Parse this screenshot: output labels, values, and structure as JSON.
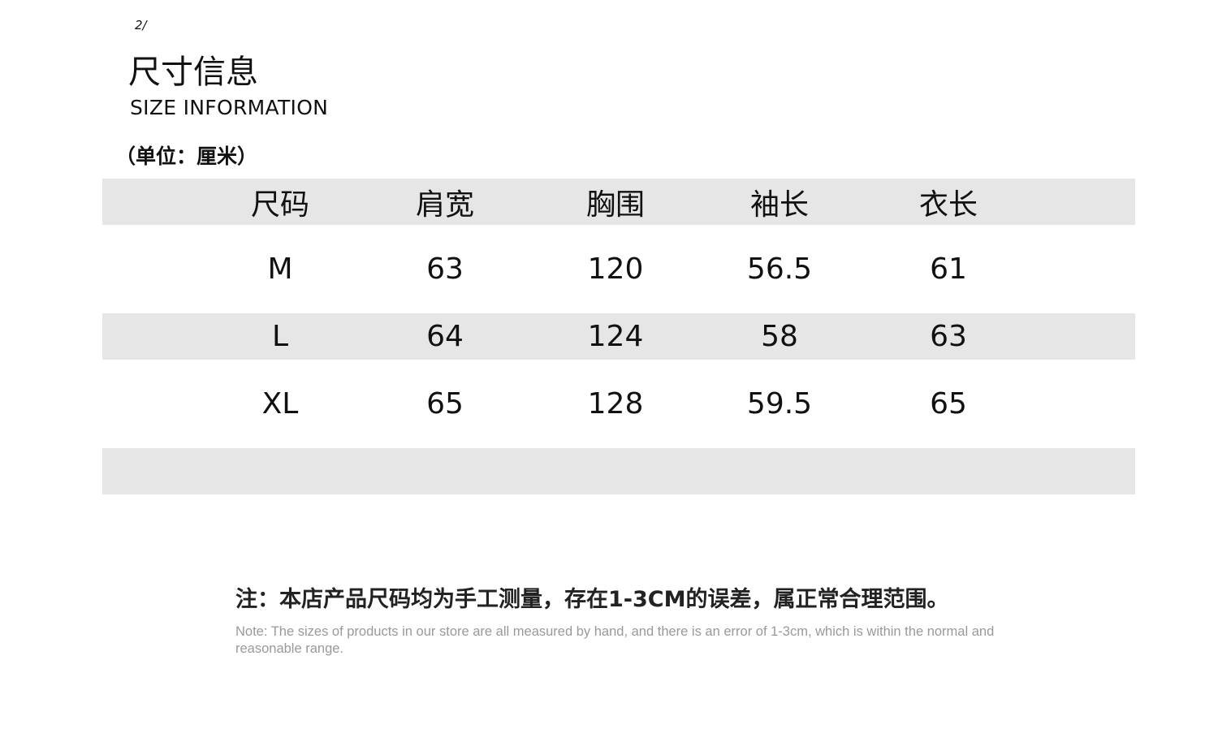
{
  "page_marker": "2/",
  "title": "尺寸信息",
  "subtitle": "SIZE INFORMATION",
  "unit": "（单位：厘米）",
  "table": {
    "headers": [
      "尺码",
      "肩宽",
      "胸围",
      "袖长",
      "衣长"
    ],
    "rows": [
      [
        "M",
        "63",
        "120",
        "56.5",
        "61"
      ],
      [
        "L",
        "64",
        "124",
        "58",
        "63"
      ],
      [
        "XL",
        "65",
        "128",
        "59.5",
        "65"
      ]
    ]
  },
  "note_cn": "注：本店产品尺码均为手工测量，存在1-3CM的误差，属正常合理范围。",
  "note_en": "Note: The sizes of products in our store are all measured by hand, and there is an error of 1-3cm, which is within the normal and reasonable range.",
  "colors": {
    "row_stripe": "#e6e6e6",
    "note_en": "#999999"
  }
}
